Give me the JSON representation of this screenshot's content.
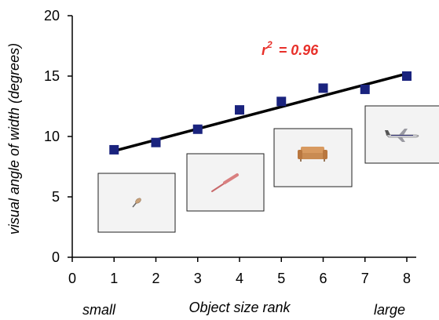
{
  "chart_data": {
    "type": "scatter",
    "xlabel": "Object size rank",
    "ylabel": "visual angle of width (degrees)",
    "x_end_labels": {
      "left": "small",
      "right": "large"
    },
    "xlim": [
      0,
      8
    ],
    "ylim": [
      0,
      20
    ],
    "x_ticks": [
      "0",
      "1",
      "2",
      "3",
      "4",
      "5",
      "6",
      "7",
      "8"
    ],
    "y_ticks": [
      "0",
      "5",
      "10",
      "15",
      "20"
    ],
    "annotation": {
      "r_symbol": "r",
      "superscript": "2",
      "value_text": "= 0.96"
    },
    "marker_color": "#1a237e",
    "fit_line_color": "#000000",
    "annotation_color": "#e8302a",
    "grid": false,
    "points": [
      {
        "x": 1,
        "y": 8.9
      },
      {
        "x": 2,
        "y": 9.5
      },
      {
        "x": 3,
        "y": 10.6
      },
      {
        "x": 4,
        "y": 12.2
      },
      {
        "x": 5,
        "y": 12.9
      },
      {
        "x": 6,
        "y": 14.0
      },
      {
        "x": 7,
        "y": 13.9
      },
      {
        "x": 8,
        "y": 15.0
      }
    ],
    "fit_line": {
      "x": [
        1,
        8
      ],
      "y": [
        8.8,
        15.2
      ]
    },
    "object_images": [
      {
        "icon": "thumbtack-icon",
        "rank": 1
      },
      {
        "icon": "baseball-bat-icon",
        "rank": 3
      },
      {
        "icon": "sofa-icon",
        "rank": 5
      },
      {
        "icon": "airplane-icon",
        "rank": 7
      }
    ]
  }
}
